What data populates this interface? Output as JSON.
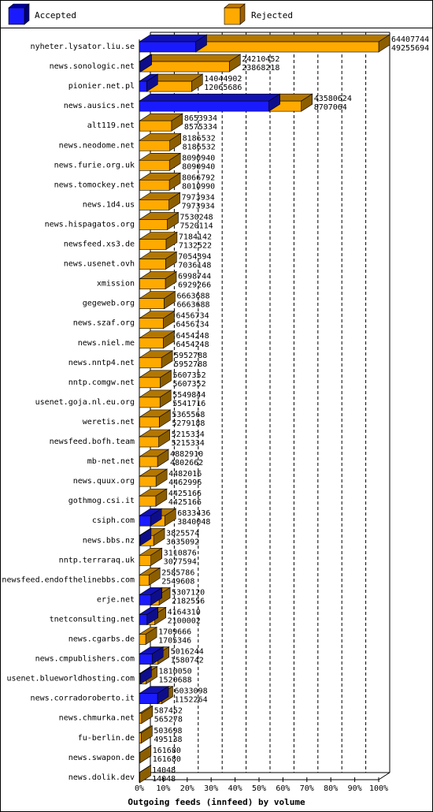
{
  "chart_data": {
    "type": "bar",
    "orientation": "horizontal",
    "style": "3d-stacked",
    "title": "Outgoing feeds (innfeed) by volume",
    "xlim": [
      0,
      100
    ],
    "x_ticks": [
      "0%",
      "10%",
      "20%",
      "30%",
      "40%",
      "50%",
      "60%",
      "70%",
      "80%",
      "90%",
      "100%"
    ],
    "grid": "vertical dashed",
    "legend_position": "top",
    "categories": [
      "nyheter.lysator.liu.se",
      "news.sonologic.net",
      "pionier.net.pl",
      "news.ausics.net",
      "alt119.net",
      "news.neodome.net",
      "news.furie.org.uk",
      "news.tomockey.net",
      "news.1d4.us",
      "news.hispagatos.org",
      "newsfeed.xs3.de",
      "news.usenet.ovh",
      "xmission",
      "gegeweb.org",
      "news.szaf.org",
      "news.niel.me",
      "news.nntp4.net",
      "nntp.comgw.net",
      "usenet.goja.nl.eu.org",
      "weretis.net",
      "newsfeed.bofh.team",
      "mb-net.net",
      "news.quux.org",
      "gothmog.csi.it",
      "csiph.com",
      "news.bbs.nz",
      "nntp.terraraq.uk",
      "newsfeed.endofthelinebbs.com",
      "erje.net",
      "tnetconsulting.net",
      "news.cgarbs.de",
      "news.cmpublishers.com",
      "usenet.blueworldhosting.com",
      "news.corradoroberto.it",
      "news.chmurka.net",
      "fu-berlin.de",
      "news.swapon.de",
      "news.dolik.dev"
    ],
    "series": [
      {
        "name": "Accepted",
        "color": "#1a1aff",
        "values": [
          64407744,
          24210452,
          14044902,
          43580624,
          8653934,
          8186532,
          8090940,
          8066792,
          7973934,
          7530248,
          7184142,
          7054394,
          6998744,
          6663688,
          6456734,
          6454248,
          5952788,
          5607352,
          5549844,
          5365568,
          5215334,
          4882910,
          4482016,
          4425166,
          6833436,
          3825574,
          3110876,
          2585786,
          5307120,
          4164310,
          1709666,
          5016244,
          1810050,
          6033098,
          587452,
          503698,
          161680,
          14048
        ]
      },
      {
        "name": "Rejected",
        "color": "#ffaa00",
        "values": [
          49255694,
          23868218,
          12065686,
          8707064,
          8575334,
          8186532,
          8090940,
          8010990,
          7973934,
          7520114,
          7132522,
          7036148,
          6929266,
          6663688,
          6456734,
          6454248,
          5952788,
          5607352,
          5541716,
          5279188,
          5215334,
          4802662,
          4462996,
          4425166,
          3840048,
          3635092,
          3077594,
          2549608,
          2182556,
          2100002,
          1705346,
          1580742,
          1520688,
          1152264,
          565278,
          495138,
          161680,
          14048
        ]
      }
    ]
  }
}
